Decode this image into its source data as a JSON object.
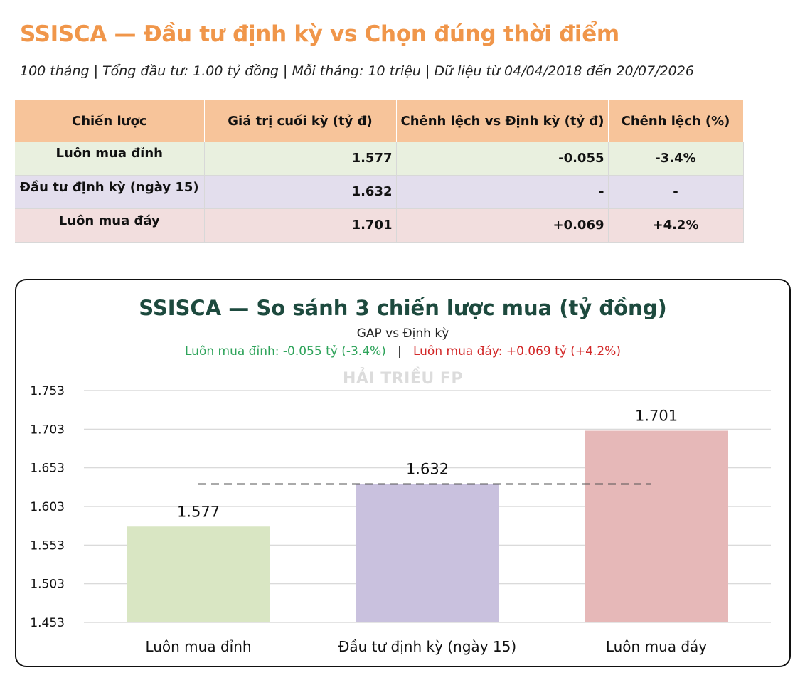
{
  "header": {
    "title": "SSISCA — Đầu tư định kỳ vs Chọn đúng thời điểm",
    "subtitle": "100 tháng | Tổng đầu tư: 1.00 tỷ đồng | Mỗi tháng: 10 triệu | Dữ liệu từ 04/04/2018 đến 20/07/2026"
  },
  "table": {
    "headers": [
      "Chiến lược",
      "Giá trị cuối kỳ (tỷ đ)",
      "Chênh lệch vs Định kỳ (tỷ đ)",
      "Chênh lệch (%)"
    ],
    "rows": [
      [
        "Luôn mua đỉnh",
        "1.577",
        "-0.055",
        "-3.4%"
      ],
      [
        "Đầu tư định kỳ (ngày 15)",
        "1.632",
        "-",
        "-"
      ],
      [
        "Luôn mua đáy",
        "1.701",
        "+0.069",
        "+4.2%"
      ]
    ],
    "colors": {
      "header_bg": "#f7c49a",
      "row_top": "#e9f0df",
      "row_dca": "#e3deed",
      "row_bottom": "#f2dede"
    }
  },
  "chart_data": {
    "type": "bar",
    "title": "SSISCA — So sánh 3 chiến lược mua (tỷ đồng)",
    "subtitle": "GAP vs Định kỳ",
    "gap_top": "Luôn mua đỉnh: -0.055 tỷ (-3.4%)",
    "gap_separator": "|",
    "gap_bottom": "Luôn mua đáy: +0.069 tỷ (+4.2%)",
    "watermark": "HẢI TRIỀU FP",
    "categories": [
      "Luôn mua đỉnh",
      "Đầu tư định kỳ (ngày 15)",
      "Luôn mua đáy"
    ],
    "values": [
      1.577,
      1.632,
      1.701
    ],
    "value_labels": [
      "1.577",
      "1.632",
      "1.701"
    ],
    "bar_colors": [
      "#d9e6c3",
      "#c9c1de",
      "#e6b8b8"
    ],
    "reference_line": 1.632,
    "ylim": [
      1.453,
      1.753
    ],
    "yticks": [
      "1.753",
      "1.703",
      "1.653",
      "1.603",
      "1.553",
      "1.503",
      "1.453"
    ],
    "grid": true,
    "xlabel": "",
    "ylabel": "",
    "colors": {
      "gap_top": "#2ea35a",
      "gap_bottom": "#d22828",
      "title": "#1d4a3e"
    }
  }
}
